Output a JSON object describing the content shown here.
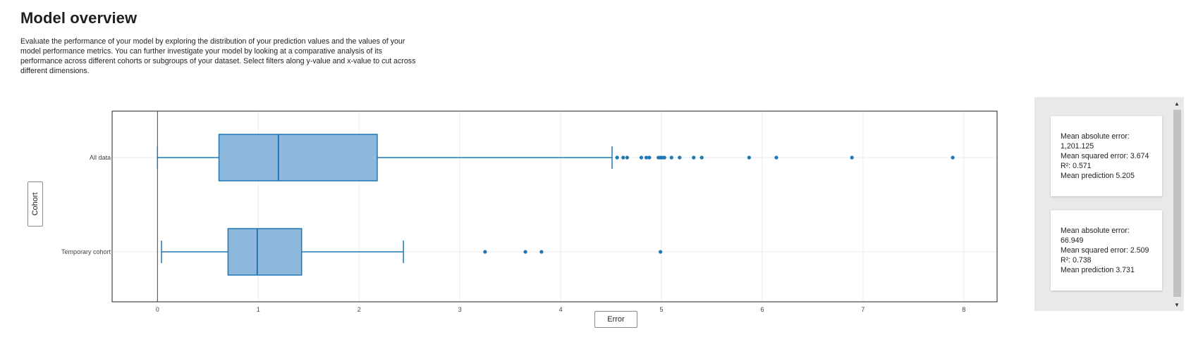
{
  "page": {
    "title": "Model overview",
    "description": "Evaluate the performance of your model by exploring the distribution of your prediction values and the values of your model performance metrics. You can further investigate your model by looking at a comparative analysis of its performance across different cohorts or subgroups of your dataset. Select filters along y-value and x-value to cut across different dimensions."
  },
  "controls": {
    "y_axis_button": "Cohort",
    "x_axis_button": "Error"
  },
  "colors": {
    "box_fill": "#8db8db",
    "box_stroke": "#1f77b4",
    "grid": "#ebebeb",
    "panel_bg": "#e9e9e9"
  },
  "chart_data": {
    "type": "box",
    "xlabel": "Error",
    "ylabel": "Cohort",
    "xlim": [
      -0.45,
      8.33
    ],
    "xticks": [
      0,
      1,
      2,
      3,
      4,
      5,
      6,
      7,
      8
    ],
    "grid": true,
    "orientation": "horizontal",
    "series": [
      {
        "name": "All data",
        "min": 0.0,
        "q1": 0.61,
        "median": 1.2,
        "q3": 2.18,
        "max": 4.51,
        "outliers": [
          4.56,
          4.62,
          4.66,
          4.8,
          4.85,
          4.88,
          4.97,
          4.99,
          5.01,
          5.03,
          5.1,
          5.18,
          5.32,
          5.4,
          5.87,
          6.14,
          6.89,
          7.89
        ]
      },
      {
        "name": "Temporary cohort",
        "min": 0.04,
        "q1": 0.7,
        "median": 0.99,
        "q3": 1.43,
        "max": 2.44,
        "outliers": [
          3.25,
          3.65,
          3.81,
          4.99
        ]
      }
    ]
  },
  "metrics_cards": [
    {
      "mae": "Mean absolute error: 1,201.125",
      "mse": "Mean squared error: 3.674",
      "r2": "R²: 0.571",
      "mean_pred": "Mean prediction 5.205"
    },
    {
      "mae": "Mean absolute error: 66.949",
      "mse": "Mean squared error: 2.509",
      "r2": "R²: 0.738",
      "mean_pred": "Mean prediction 3.731"
    }
  ]
}
